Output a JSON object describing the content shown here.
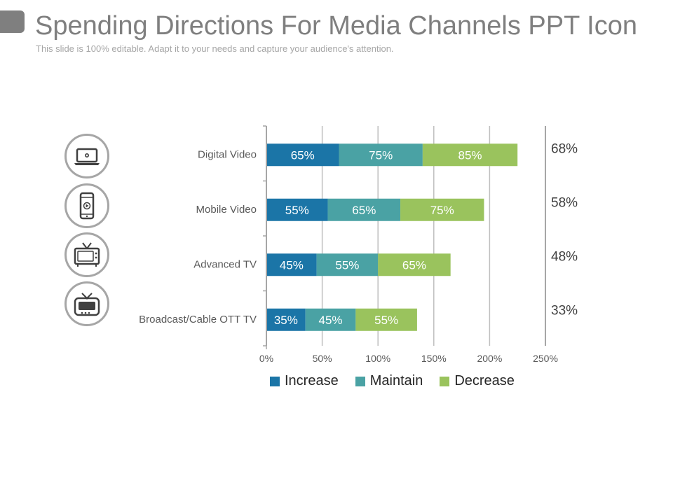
{
  "slide": {
    "title": "Spending Directions For Media Channels PPT Icon",
    "subtitle": "This slide is 100% editable. Adapt it to your needs and capture your audience's attention."
  },
  "icons": [
    {
      "name": "laptop-icon"
    },
    {
      "name": "smartphone-icon"
    },
    {
      "name": "retro-tv-icon"
    },
    {
      "name": "broadcast-tv-icon"
    }
  ],
  "colors": {
    "increase": "#1b75a7",
    "maintain": "#4aa2a4",
    "decrease": "#9ac35d",
    "axis": "#a6a6a6",
    "text": "#595959"
  },
  "chart_data": {
    "type": "bar",
    "orientation": "horizontal",
    "stacked": true,
    "categories": [
      "Digital Video",
      "Mobile Video",
      "Advanced TV",
      "Broadcast/Cable OTT TV"
    ],
    "series": [
      {
        "name": "Increase",
        "values": [
          65,
          55,
          45,
          35
        ],
        "labels": [
          "65%",
          "55%",
          "45%",
          "35%"
        ]
      },
      {
        "name": "Maintain",
        "values": [
          75,
          65,
          55,
          45
        ],
        "labels": [
          "75%",
          "65%",
          "55%",
          "45%"
        ]
      },
      {
        "name": "Decrease",
        "values": [
          85,
          75,
          65,
          55
        ],
        "labels": [
          "85%",
          "75%",
          "65%",
          "55%"
        ]
      }
    ],
    "xlim": [
      0,
      250
    ],
    "xticks": [
      0,
      50,
      100,
      150,
      200,
      250
    ],
    "xtick_labels": [
      "0%",
      "50%",
      "100%",
      "150%",
      "200%",
      "250%"
    ],
    "grid": true,
    "legend": "bottom",
    "right_labels": [
      "68%",
      "58%",
      "48%",
      "33%"
    ]
  }
}
